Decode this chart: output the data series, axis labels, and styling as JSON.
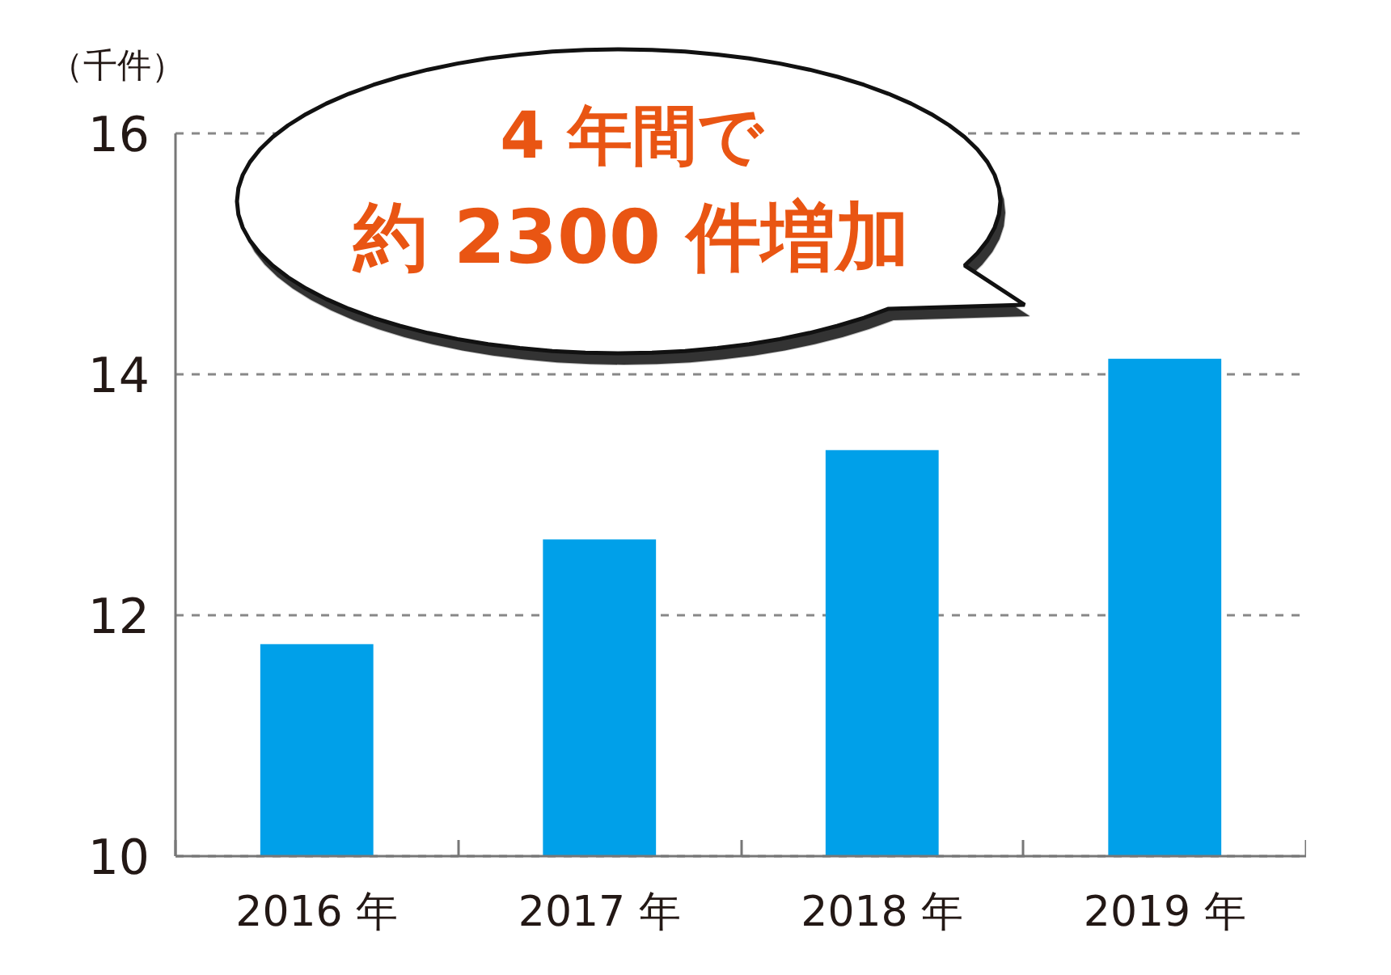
{
  "chart_data": {
    "type": "bar",
    "ylabel": "（千件）",
    "categories": [
      "2016 年",
      "2017 年",
      "2018 年",
      "2019 年"
    ],
    "values": [
      11.76,
      12.63,
      13.37,
      14.13
    ],
    "color": "#00a0e9",
    "ylim": [
      10,
      16
    ],
    "yticks": [
      10,
      12,
      14,
      16
    ],
    "grid": "y",
    "annotations": [
      "4 年間で",
      "約 2300 件増加"
    ]
  }
}
